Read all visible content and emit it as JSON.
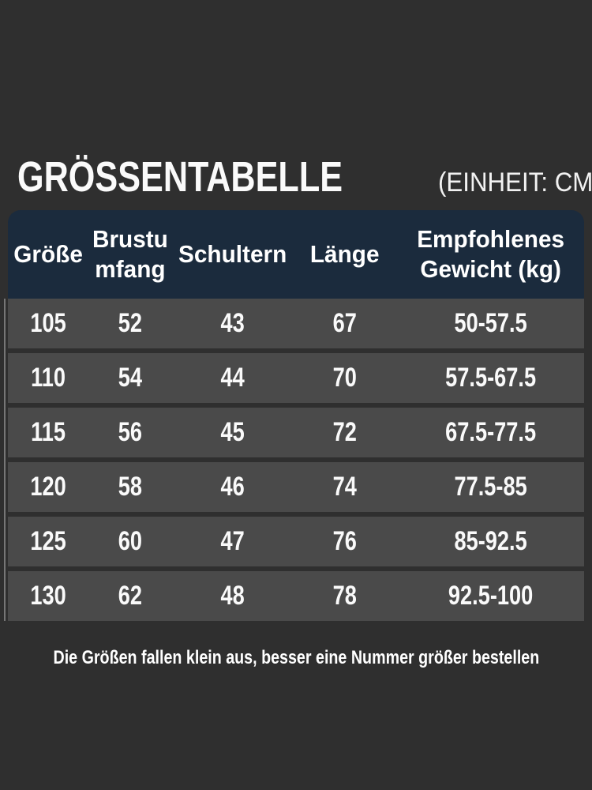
{
  "colors": {
    "page_background": "#2f2f2f",
    "header_background": "#1b2b3d",
    "row_background": "#4a4a4a",
    "text": "#ffffff"
  },
  "chart_data": {
    "type": "table",
    "title": "GRÖSSENTABELLE",
    "unit_label": "(EINHEIT: CM)",
    "columns": [
      "Größe",
      "Brustu\nmfang",
      "Schultern",
      "Länge",
      "Empfohlenes\nGewicht (kg)"
    ],
    "rows": [
      [
        "105",
        "52",
        "43",
        "67",
        "50-57.5"
      ],
      [
        "110",
        "54",
        "44",
        "70",
        "57.5-67.5"
      ],
      [
        "115",
        "56",
        "45",
        "72",
        "67.5-77.5"
      ],
      [
        "120",
        "58",
        "46",
        "74",
        "77.5-85"
      ],
      [
        "125",
        "60",
        "47",
        "76",
        "85-92.5"
      ],
      [
        "130",
        "62",
        "48",
        "78",
        "92.5-100"
      ]
    ],
    "note": "Die Größen fallen klein aus, besser eine Nummer größer bestellen"
  }
}
